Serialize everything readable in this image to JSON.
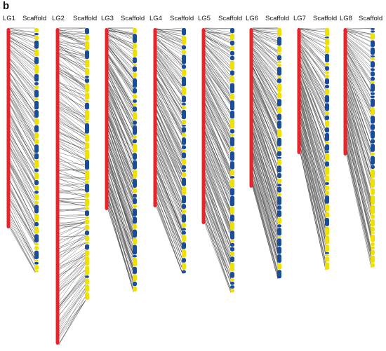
{
  "panel_label": "b",
  "colors": {
    "linkage_group": "#e8232a",
    "scaffold_a": "#f0e000",
    "scaffold_b": "#1a4c9c",
    "link_line": "#333333",
    "background": "#ffffff"
  },
  "groups": [
    {
      "id": "LG1",
      "label": "LG1",
      "scaffold_label": "Scaffold",
      "lg_length": 1.0,
      "sc_length": 1.22,
      "links": 140,
      "blocks": [
        "y",
        "b",
        "y",
        "b",
        "y",
        "b",
        "y",
        "b",
        "b",
        "y",
        "b",
        "y",
        "b",
        "b",
        "y",
        "b",
        "y",
        "y",
        "b",
        "b",
        "y",
        "b",
        "y",
        "b",
        "y",
        "b",
        "y",
        "y",
        "b",
        "y",
        "b",
        "y",
        "b",
        "y",
        "y",
        "b",
        "y",
        "b",
        "y",
        "y"
      ]
    },
    {
      "id": "LG2",
      "label": "LG2",
      "scaffold_label": "Scaffold",
      "lg_length": 1.0,
      "sc_length": 0.86,
      "links": 210,
      "blocks": [
        "b",
        "y",
        "y",
        "b",
        "y",
        "y",
        "b",
        "b",
        "y",
        "y",
        "y",
        "b",
        "y",
        "y",
        "b",
        "y",
        "y",
        "y",
        "b",
        "y",
        "y",
        "b",
        "y",
        "y",
        "y",
        "b",
        "y",
        "y",
        "y",
        "b",
        "y",
        "y",
        "b",
        "y",
        "y",
        "y",
        "b",
        "y",
        "y",
        "y"
      ]
    },
    {
      "id": "LG3",
      "label": "LG3",
      "scaffold_label": "Scaffold",
      "lg_length": 1.0,
      "sc_length": 1.45,
      "links": 190,
      "blocks": [
        "y",
        "b",
        "y",
        "y",
        "b",
        "y",
        "b",
        "y",
        "b",
        "b",
        "y",
        "b",
        "y",
        "b",
        "y",
        "b",
        "b",
        "y",
        "b",
        "y",
        "b",
        "b",
        "y",
        "b",
        "y",
        "b",
        "b",
        "y",
        "b",
        "b",
        "y",
        "b",
        "y",
        "b",
        "b",
        "y",
        "b",
        "y",
        "b",
        "y"
      ]
    },
    {
      "id": "LG4",
      "label": "LG4",
      "scaffold_label": "Scaffold",
      "lg_length": 1.0,
      "sc_length": 1.37,
      "links": 170,
      "blocks": [
        "b",
        "y",
        "b",
        "y",
        "b",
        "b",
        "y",
        "b",
        "y",
        "b",
        "b",
        "y",
        "b",
        "y",
        "b",
        "b",
        "y",
        "b",
        "b",
        "y",
        "b",
        "y",
        "b",
        "b",
        "y",
        "b",
        "y",
        "b",
        "b",
        "y",
        "b",
        "y",
        "b",
        "b",
        "y",
        "b",
        "y",
        "b",
        "y",
        "b"
      ]
    },
    {
      "id": "LG5",
      "label": "LG5",
      "scaffold_label": "Scaffold",
      "lg_length": 1.0,
      "sc_length": 1.35,
      "links": 180,
      "blocks": [
        "b",
        "y",
        "b",
        "y",
        "b",
        "b",
        "y",
        "b",
        "y",
        "b",
        "y",
        "b",
        "b",
        "y",
        "b",
        "y",
        "b",
        "y",
        "b",
        "b",
        "y",
        "b",
        "y",
        "b",
        "b",
        "y",
        "b",
        "y",
        "b",
        "y",
        "b",
        "b",
        "y",
        "b",
        "y",
        "b",
        "y",
        "b",
        "b",
        "y"
      ]
    },
    {
      "id": "LG6",
      "label": "LG6",
      "scaffold_label": "Scaffold",
      "lg_length": 1.0,
      "sc_length": 1.57,
      "links": 170,
      "blocks": [
        "y",
        "b",
        "y",
        "y",
        "b",
        "y",
        "y",
        "b",
        "y",
        "b",
        "y",
        "y",
        "b",
        "y",
        "b",
        "b",
        "y",
        "b",
        "y",
        "b",
        "b",
        "y",
        "b",
        "b",
        "y",
        "b",
        "b",
        "y",
        "b",
        "b",
        "b",
        "y",
        "b",
        "b",
        "y",
        "b",
        "b",
        "b",
        "y",
        "b"
      ]
    },
    {
      "id": "LG7",
      "label": "LG7",
      "scaffold_label": "Scaffold",
      "lg_length": 1.0,
      "sc_length": 1.92,
      "links": 130,
      "blocks": [
        "y",
        "b",
        "y",
        "y",
        "b",
        "y",
        "b",
        "y",
        "y",
        "b",
        "b",
        "y",
        "b",
        "b",
        "y",
        "b",
        "y",
        "b",
        "b",
        "y",
        "b",
        "b",
        "y",
        "b",
        "y",
        "y",
        "b",
        "y",
        "y",
        "b",
        "y",
        "y",
        "b",
        "y",
        "y",
        "y",
        "b",
        "y",
        "y",
        "y"
      ]
    },
    {
      "id": "LG8",
      "label": "LG8",
      "scaffold_label": "Scaffold",
      "lg_length": 1.0,
      "sc_length": 1.88,
      "links": 110,
      "blocks": [
        "b",
        "b",
        "y",
        "b",
        "b",
        "b",
        "y",
        "b",
        "b",
        "b",
        "b",
        "y",
        "b",
        "b",
        "b",
        "b",
        "y",
        "b",
        "b",
        "b",
        "b",
        "b",
        "y",
        "b",
        "b",
        "y",
        "y",
        "y",
        "y",
        "y",
        "y",
        "y",
        "y",
        "y",
        "y",
        "y",
        "y",
        "y",
        "y",
        "y"
      ]
    }
  ]
}
